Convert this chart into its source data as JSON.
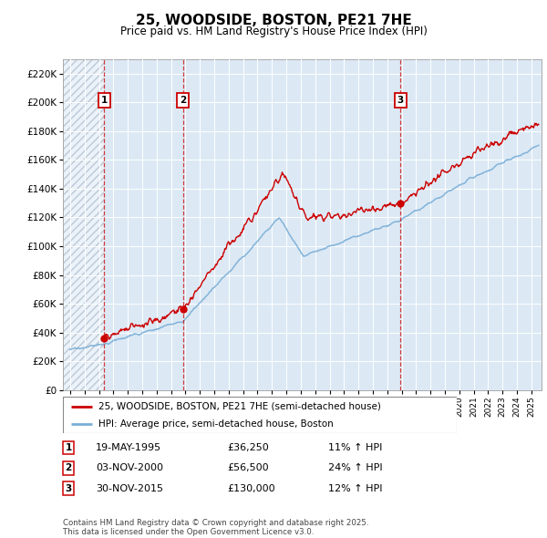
{
  "title": "25, WOODSIDE, BOSTON, PE21 7HE",
  "subtitle": "Price paid vs. HM Land Registry's House Price Index (HPI)",
  "ylim": [
    0,
    230000
  ],
  "background_color": "#ffffff",
  "plot_bg_color": "#dce9f5",
  "hatch_color": "#b0bfce",
  "grid_color": "#ffffff",
  "sale_line_color": "#cc0000",
  "hpi_line_color": "#7aaed6",
  "annotation_border_color": "#cc0000",
  "transactions": [
    {
      "label": "1",
      "date": "19-MAY-1995",
      "price": 36250,
      "pct": "11%",
      "year_x": 1995.37
    },
    {
      "label": "2",
      "date": "03-NOV-2000",
      "price": 56500,
      "pct": "24%",
      "year_x": 2000.84
    },
    {
      "label": "3",
      "date": "30-NOV-2015",
      "price": 130000,
      "pct": "12%",
      "year_x": 2015.92
    }
  ],
  "legend_entries": [
    "25, WOODSIDE, BOSTON, PE21 7HE (semi-detached house)",
    "HPI: Average price, semi-detached house, Boston"
  ],
  "footnote": "Contains HM Land Registry data © Crown copyright and database right 2025.\nThis data is licensed under the Open Government Licence v3.0.",
  "xmin": 1992.5,
  "xmax": 2025.7
}
